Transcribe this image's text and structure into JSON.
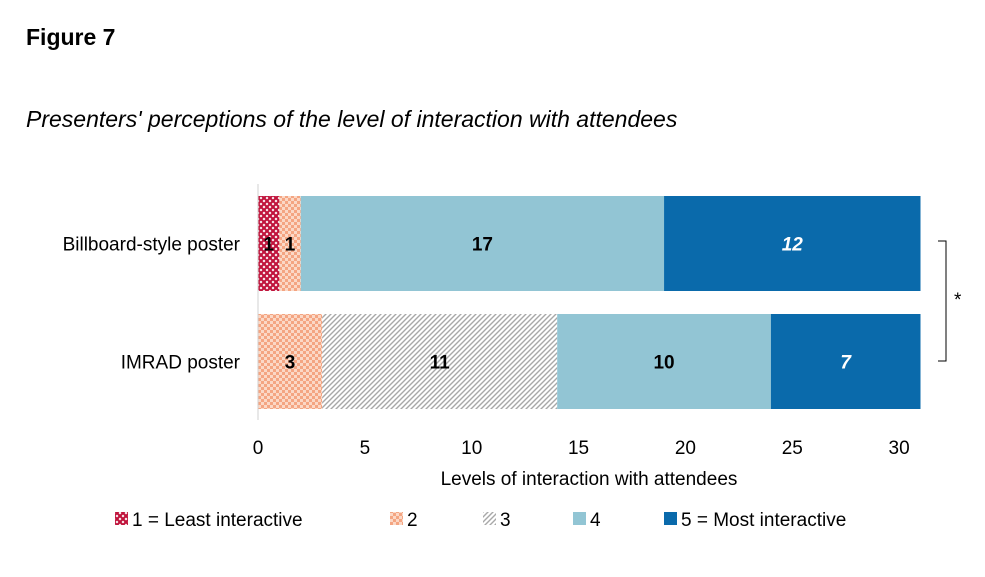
{
  "figure_label": "Figure 7",
  "title": "Presenters' perceptions of the level of interaction with attendees",
  "chart_data": {
    "type": "bar",
    "orientation": "horizontal",
    "stacked": true,
    "categories": [
      "Billboard-style poster",
      "IMRAD poster"
    ],
    "series": [
      {
        "name": "1 = Least interactive",
        "values": [
          1,
          0
        ],
        "color": "#c0143c",
        "pattern": "crosshatch"
      },
      {
        "name": "2",
        "values": [
          1,
          3
        ],
        "color": "#f4a582",
        "pattern": "checker"
      },
      {
        "name": "3",
        "values": [
          0,
          11
        ],
        "color": "#b0b0b0",
        "pattern": "diagonal"
      },
      {
        "name": "4",
        "values": [
          17,
          10
        ],
        "color": "#92c5d4"
      },
      {
        "name": "5 = Most interactive",
        "values": [
          12,
          7
        ],
        "color": "#0a6aab",
        "label_color": "#ffffff",
        "label_italic": true
      }
    ],
    "segment_labels": [
      [
        "1",
        "1",
        "",
        "17",
        "12"
      ],
      [
        "",
        "3",
        "11",
        "10",
        "7"
      ]
    ],
    "xlabel": "Levels of interaction with attendees",
    "xlim": [
      0,
      31
    ],
    "xticks": [
      0,
      5,
      10,
      15,
      20,
      25,
      30
    ],
    "xtick_labels": [
      "0",
      "5",
      "10",
      "15",
      "20",
      "25",
      "30"
    ],
    "grid": false,
    "legend_position": "bottom",
    "annotation": "*"
  }
}
